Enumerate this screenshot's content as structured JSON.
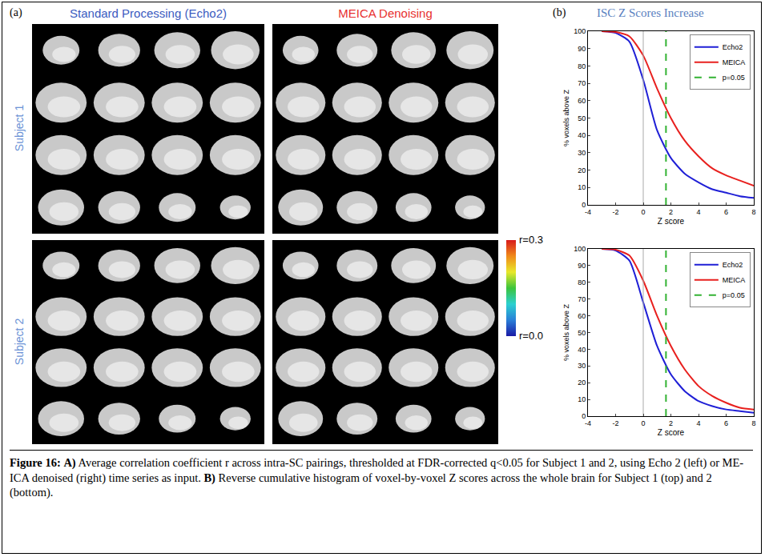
{
  "panel_a": {
    "label": "(a)",
    "headers": [
      "Standard Processing (Echo2)",
      "MEICA Denoising"
    ],
    "rows": [
      "Subject 1",
      "Subject 2"
    ],
    "colorbar": {
      "range": [
        0.0,
        0.3
      ],
      "labels": [
        {
          "value": 0.3,
          "label": "r=0.3"
        },
        {
          "value": 0.0,
          "label": "r=0.0"
        }
      ]
    }
  },
  "panel_b": {
    "label": "(b)",
    "title": "ISC Z Scores Increase"
  },
  "chart_data": [
    {
      "type": "line",
      "x_label": "Z score",
      "y_label": "% voxels above Z",
      "xlim": [
        -4,
        8
      ],
      "xticks": [
        -4,
        -2,
        0,
        2,
        4,
        6,
        8
      ],
      "ylim": [
        0,
        100
      ],
      "yticks": [
        0,
        10,
        20,
        30,
        40,
        50,
        60,
        70,
        80,
        90,
        100
      ],
      "grid": false,
      "legend": "upper right",
      "series": [
        {
          "name": "Echo2",
          "color": "#1f1fd6",
          "line_style": "solid",
          "x": [
            -3,
            -2,
            -1,
            0,
            1,
            2,
            3,
            4,
            5,
            6,
            7,
            8
          ],
          "values": [
            100,
            99,
            94,
            72,
            43,
            27,
            18,
            13,
            9,
            7,
            5,
            4
          ]
        },
        {
          "name": "MEICA",
          "color": "#e8201e",
          "line_style": "solid",
          "x": [
            -3,
            -2,
            -1,
            0,
            1,
            2,
            3,
            4,
            5,
            6,
            7,
            8
          ],
          "values": [
            100,
            99.5,
            97,
            86,
            67,
            50,
            37,
            28,
            21,
            17,
            14,
            11
          ]
        },
        {
          "name": "p=0.05",
          "color": "#33b233",
          "line_style": "dashed",
          "x": [
            1.645,
            1.645
          ],
          "values": [
            0,
            100
          ]
        },
        {
          "color": "#aaaaaa",
          "line_style": "solid",
          "x": [
            0,
            0
          ],
          "values": [
            0,
            100
          ]
        }
      ]
    },
    {
      "type": "line",
      "x_label": "Z score",
      "y_label": "% voxels above Z",
      "xlim": [
        -4,
        8
      ],
      "xticks": [
        -4,
        -2,
        0,
        2,
        4,
        6,
        8
      ],
      "ylim": [
        0,
        100
      ],
      "yticks": [
        0,
        10,
        20,
        30,
        40,
        50,
        60,
        70,
        80,
        90,
        100
      ],
      "grid": false,
      "legend": "upper right",
      "series": [
        {
          "name": "Echo2",
          "color": "#1f1fd6",
          "line_style": "solid",
          "x": [
            -3,
            -2,
            -1,
            0,
            1,
            2,
            3,
            4,
            5,
            6,
            7,
            8
          ],
          "values": [
            100,
            99,
            93,
            68,
            42,
            25,
            15,
            9,
            6,
            4,
            3,
            2
          ]
        },
        {
          "name": "MEICA",
          "color": "#e8201e",
          "line_style": "solid",
          "x": [
            -3,
            -2,
            -1,
            0,
            1,
            2,
            3,
            4,
            5,
            6,
            7,
            8
          ],
          "values": [
            100,
            99.5,
            96,
            81,
            60,
            42,
            28,
            18,
            12,
            8,
            5,
            4
          ]
        },
        {
          "name": "p=0.05",
          "color": "#33b233",
          "line_style": "dashed",
          "x": [
            1.645,
            1.645
          ],
          "values": [
            0,
            100
          ]
        },
        {
          "color": "#aaaaaa",
          "line_style": "solid",
          "x": [
            0,
            0
          ],
          "values": [
            0,
            100
          ]
        }
      ]
    }
  ],
  "caption": [
    {
      "text": "Figure 16:",
      "bold": true
    },
    {
      "text": " "
    },
    {
      "text": "A)",
      "bold": true
    },
    {
      "text": " Average correlation coefficient r across intra-SC pairings, thresholded at FDR-corrected q<0.05 for Subject 1 and 2, using Echo 2 (left) or ME-ICA denoised (right) time series as input. "
    },
    {
      "text": "B)",
      "bold": true
    },
    {
      "text": " Reverse cumulative histogram of voxel-by-voxel Z scores across the whole brain for Subject 1 (top) and 2 (bottom)."
    }
  ]
}
